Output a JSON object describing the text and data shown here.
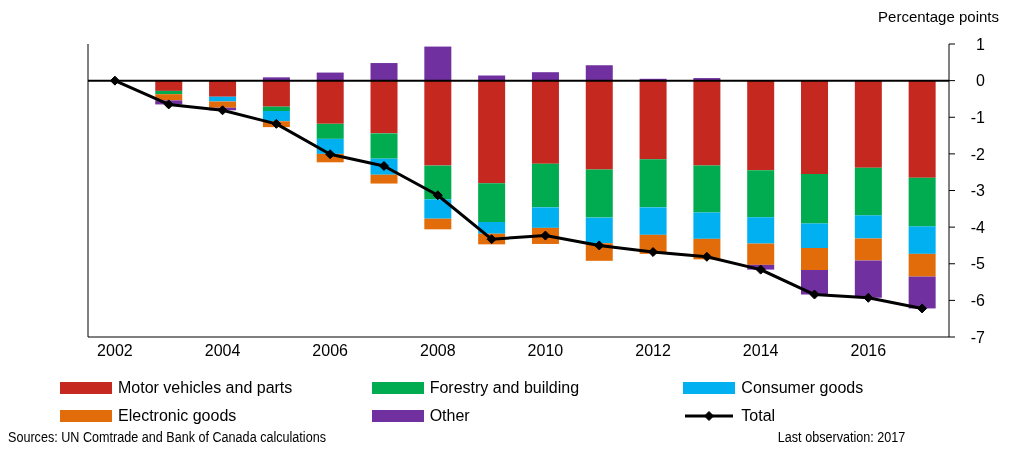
{
  "chart_data": {
    "type": "bar",
    "stacked": true,
    "ylabel": "Percentage points",
    "categories": [
      "2002",
      null,
      "2004",
      null,
      "2006",
      null,
      "2008",
      null,
      "2010",
      null,
      "2012",
      null,
      "2014",
      null,
      "2016",
      null
    ],
    "series": [
      {
        "name": "Motor vehicles and parts",
        "color": "#c4281f",
        "values": [
          null,
          -0.28,
          -0.44,
          -0.71,
          -1.18,
          -1.44,
          -2.32,
          -2.8,
          -2.27,
          -2.43,
          -2.15,
          -2.32,
          -2.45,
          -2.55,
          -2.38,
          -2.65
        ]
      },
      {
        "name": "Forestry and building",
        "color": "#00ac4f",
        "values": [
          null,
          -0.09,
          0,
          -0.12,
          -0.41,
          -0.69,
          -0.92,
          -1.06,
          -1.19,
          -1.31,
          -1.31,
          -1.28,
          -1.28,
          -1.35,
          -1.3,
          -1.33
        ]
      },
      {
        "name": "Consumer goods",
        "color": "#00b0f0",
        "values": [
          null,
          0,
          -0.13,
          -0.28,
          -0.41,
          -0.44,
          -0.53,
          -0.32,
          -0.56,
          -0.7,
          -0.75,
          -0.72,
          -0.72,
          -0.67,
          -0.63,
          -0.75
        ]
      },
      {
        "name": "Electronic goods",
        "color": "#e36c0a",
        "values": [
          null,
          -0.17,
          -0.17,
          -0.16,
          -0.23,
          -0.24,
          -0.29,
          -0.29,
          -0.44,
          -0.48,
          -0.52,
          -0.56,
          -0.58,
          -0.6,
          -0.6,
          -0.62
        ]
      },
      {
        "name": "Other",
        "color": "#7030a0",
        "values": [
          null,
          -0.11,
          -0.07,
          0.09,
          0.22,
          0.48,
          0.93,
          0.14,
          0.23,
          0.42,
          0.05,
          0.07,
          -0.13,
          -0.67,
          -1.02,
          -0.87
        ]
      },
      {
        "name": "Total",
        "type": "line",
        "color": "#000000",
        "values": [
          0,
          -0.65,
          -0.81,
          -1.18,
          -2.01,
          -2.33,
          -3.13,
          -4.33,
          -4.23,
          -4.5,
          -4.68,
          -4.81,
          -5.16,
          -5.84,
          -5.93,
          -6.22
        ]
      }
    ],
    "ylim": [
      -7,
      1
    ],
    "yticks": [
      1,
      0,
      -1,
      -2,
      -3,
      -4,
      -5,
      -6,
      -7
    ],
    "grid": false,
    "legend": "bottom",
    "marker": "diamond",
    "ref_lines": [
      {
        "axis": "y",
        "value": 0,
        "color": "#000000"
      }
    ],
    "annotations": [
      "Sources: UN Comtrade and Bank of Canada calculations",
      "Last observation: 2017"
    ]
  }
}
